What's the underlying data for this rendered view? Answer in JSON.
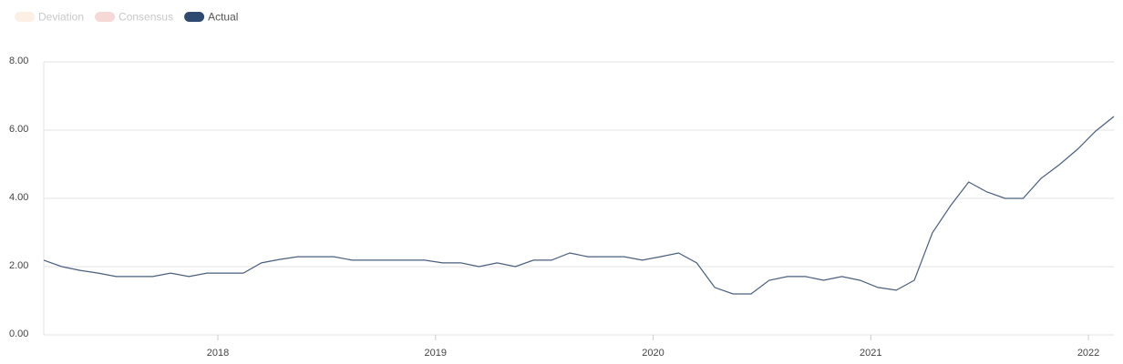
{
  "chart_data": {
    "type": "line",
    "legend": [
      {
        "name": "Deviation",
        "color": "#fcefe3",
        "text_color": "#c8c8c8"
      },
      {
        "name": "Consensus",
        "color": "#f6d9d6",
        "text_color": "#c8c8c8"
      },
      {
        "name": "Actual",
        "color": "#2e4a70",
        "text_color": "#555555"
      }
    ],
    "x": [
      2017.2,
      2017.283,
      2017.367,
      2017.45,
      2017.533,
      2017.617,
      2017.7,
      2017.783,
      2017.867,
      2017.95,
      2018.033,
      2018.117,
      2018.2,
      2018.283,
      2018.367,
      2018.45,
      2018.533,
      2018.617,
      2018.7,
      2018.783,
      2018.867,
      2018.95,
      2019.033,
      2019.117,
      2019.2,
      2019.283,
      2019.367,
      2019.45,
      2019.533,
      2019.617,
      2019.7,
      2019.783,
      2019.867,
      2019.95,
      2020.033,
      2020.117,
      2020.2,
      2020.283,
      2020.367,
      2020.45,
      2020.533,
      2020.617,
      2020.7,
      2020.783,
      2020.867,
      2020.95,
      2021.033,
      2021.117,
      2021.2,
      2021.283,
      2021.367,
      2021.45,
      2021.533,
      2021.617,
      2021.7,
      2021.783,
      2021.867,
      2021.95,
      2022.033,
      2022.117
    ],
    "series": [
      {
        "name": "Actual",
        "color": "#4a5f80",
        "values": [
          2.19,
          2.0,
          1.89,
          1.81,
          1.71,
          1.71,
          1.71,
          1.81,
          1.71,
          1.81,
          1.81,
          1.81,
          2.11,
          2.21,
          2.29,
          2.29,
          2.29,
          2.19,
          2.19,
          2.19,
          2.19,
          2.19,
          2.11,
          2.11,
          2.0,
          2.11,
          2.0,
          2.19,
          2.19,
          2.4,
          2.29,
          2.29,
          2.29,
          2.19,
          2.29,
          2.4,
          2.11,
          1.39,
          1.2,
          1.2,
          1.6,
          1.71,
          1.71,
          1.6,
          1.71,
          1.6,
          1.39,
          1.31,
          1.6,
          2.99,
          3.79,
          4.48,
          4.19,
          4.0,
          4.0,
          4.59,
          4.99,
          5.44,
          5.97,
          6.4
        ]
      }
    ],
    "xlim": [
      2017.2,
      2022.117
    ],
    "xticks": [
      2018,
      2019,
      2020,
      2021,
      2022
    ],
    "ylim": [
      0,
      8
    ],
    "yticks": [
      {
        "value": 0,
        "label": "0.00"
      },
      {
        "value": 2,
        "label": "2.00"
      },
      {
        "value": 4,
        "label": "4.00"
      },
      {
        "value": 6,
        "label": "6.00"
      },
      {
        "value": 8,
        "label": "8.00"
      }
    ],
    "grid": true
  }
}
